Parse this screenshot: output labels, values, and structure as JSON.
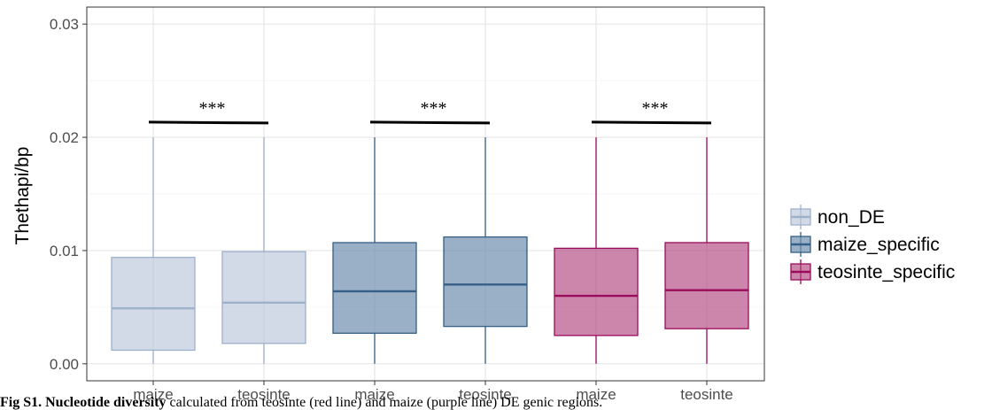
{
  "chart_data": {
    "type": "boxplot",
    "ylabel": "Thethapi/bp",
    "ylim": [
      -0.0015,
      0.0315
    ],
    "yticks": [
      0.0,
      0.01,
      0.02,
      0.03
    ],
    "ytick_labels": [
      "0.00",
      "0.01",
      "0.02",
      "0.03"
    ],
    "grid": true,
    "legend_position": "right",
    "x_tick_labels": [
      "maize",
      "teosinte",
      "maize",
      "teosinte",
      "maize",
      "teosinte"
    ],
    "series": [
      {
        "name": "non_DE",
        "fill": "#b9c6d9",
        "stroke": "#9eb1cb",
        "fill_opacity": 0.65
      },
      {
        "name": "maize_specific",
        "fill": "#6d8fae",
        "stroke": "#355f85",
        "fill_opacity": 0.7
      },
      {
        "name": "teosinte_specific",
        "fill": "#b0457e",
        "stroke": "#9a0b5c",
        "fill_opacity": 0.65
      }
    ],
    "boxes": [
      {
        "series": 0,
        "label": "maize",
        "whisker_low": 0.0,
        "q1": 0.0012,
        "median": 0.0049,
        "q3": 0.0094,
        "whisker_high": 0.02
      },
      {
        "series": 0,
        "label": "teosinte",
        "whisker_low": 0.0,
        "q1": 0.0018,
        "median": 0.0054,
        "q3": 0.0099,
        "whisker_high": 0.02
      },
      {
        "series": 1,
        "label": "maize",
        "whisker_low": 0.0,
        "q1": 0.0027,
        "median": 0.0064,
        "q3": 0.0107,
        "whisker_high": 0.02
      },
      {
        "series": 1,
        "label": "teosinte",
        "whisker_low": 0.0,
        "q1": 0.0033,
        "median": 0.007,
        "q3": 0.0112,
        "whisker_high": 0.02
      },
      {
        "series": 2,
        "label": "maize",
        "whisker_low": 0.0,
        "q1": 0.0025,
        "median": 0.006,
        "q3": 0.0102,
        "whisker_high": 0.02
      },
      {
        "series": 2,
        "label": "teosinte",
        "whisker_low": 0.0,
        "q1": 0.0031,
        "median": 0.0065,
        "q3": 0.0107,
        "whisker_high": 0.02
      }
    ],
    "significance": [
      {
        "boxes": [
          0,
          1
        ],
        "y": 0.0213,
        "label": "***"
      },
      {
        "boxes": [
          2,
          3
        ],
        "y": 0.0213,
        "label": "***"
      },
      {
        "boxes": [
          4,
          5
        ],
        "y": 0.0213,
        "label": "***"
      }
    ]
  },
  "caption": {
    "bold_part": "Fig S1. Nucleotide diversity",
    "text": " calculated from teosinte (red line) and maize (purple line) DE genic regions."
  }
}
